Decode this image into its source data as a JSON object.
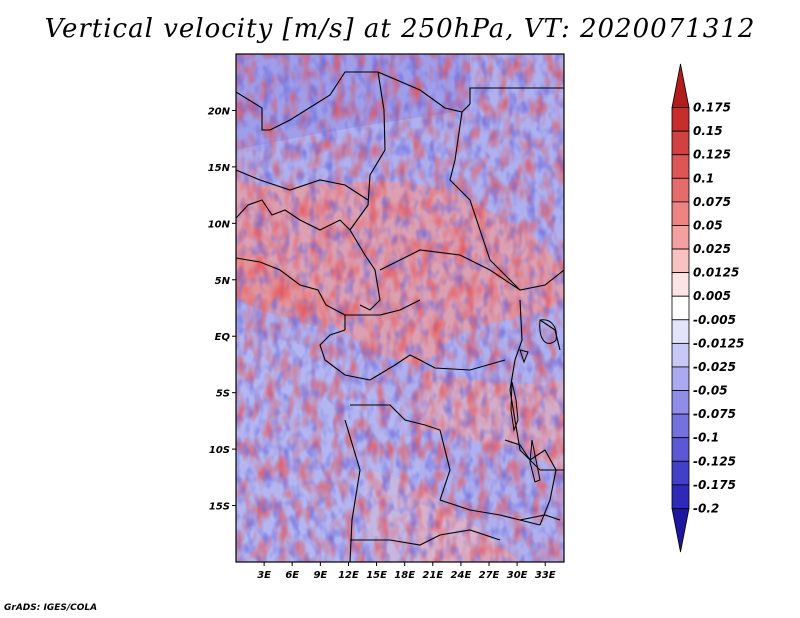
{
  "title": "Vertical velocity [m/s] at 250hPa, VT: 2020071312",
  "credit": "GrADS: IGES/COLA",
  "map": {
    "lon_range": [
      0,
      35
    ],
    "lat_range": [
      -20,
      25
    ],
    "lat_labels": [
      "20N",
      "15N",
      "10N",
      "5N",
      "EQ",
      "5S",
      "10S",
      "15S"
    ],
    "lon_labels": [
      "3E",
      "6E",
      "9E",
      "12E",
      "15E",
      "18E",
      "21E",
      "24E",
      "27E",
      "30E",
      "33E"
    ]
  },
  "colorbar": {
    "labels": [
      "0.175",
      "0.15",
      "0.125",
      "0.1",
      "0.075",
      "0.05",
      "0.025",
      "0.0125",
      "0.005",
      "-0.005",
      "-0.0125",
      "-0.025",
      "-0.05",
      "-0.075",
      "-0.1",
      "-0.125",
      "-0.175",
      "-0.2"
    ],
    "colors": [
      "#b31c1c",
      "#c62d2d",
      "#d24141",
      "#dc5656",
      "#e56c6c",
      "#ec8484",
      "#f3a0a0",
      "#f8c2c2",
      "#fde4e4",
      "#ffffff",
      "#e3e3fb",
      "#c8c8f6",
      "#abaaf0",
      "#8f8de8",
      "#7572df",
      "#5c58d4",
      "#4340c8",
      "#2e29b8",
      "#1e16a0"
    ]
  }
}
